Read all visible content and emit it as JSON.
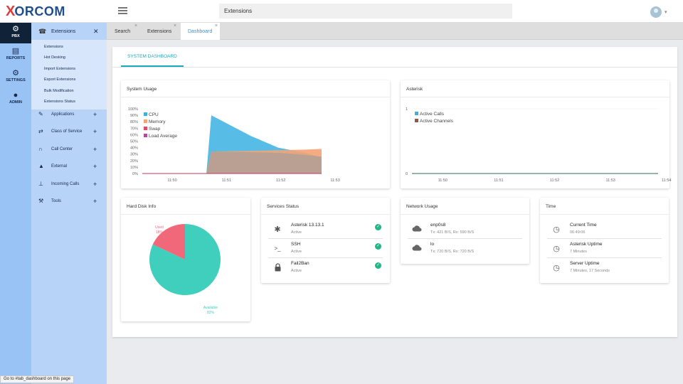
{
  "app": {
    "logo_brand": "ORCOM",
    "logo_x": "X",
    "search_value": "Extensions",
    "status_bar": "Go to #tab_dashboard on this page"
  },
  "rail": [
    {
      "label": "PBX",
      "icon": "⚙",
      "active": true
    },
    {
      "label": "REPORTS",
      "icon": "▤",
      "active": false
    },
    {
      "label": "SETTINGS",
      "icon": "⚙",
      "active": false
    },
    {
      "label": "ADMIN",
      "icon": "●",
      "active": false
    }
  ],
  "submenu": {
    "header": "Extensions",
    "links": [
      "Extensions",
      "Hot Desking",
      "Import Extensions",
      "Export Extensions",
      "Bulk Modification",
      "Extensions Status"
    ],
    "groups": [
      "Applications",
      "Class of Service",
      "Call Center",
      "External",
      "Incoming Calls",
      "Tools"
    ]
  },
  "tabs": [
    {
      "label": "Search"
    },
    {
      "label": "Extensions"
    },
    {
      "label": "Dashboard"
    }
  ],
  "dashboard": {
    "tab_label": "SYSTEM DASHBOARD",
    "system_usage": {
      "title": "System Usage"
    },
    "asterisk": {
      "title": "Asterisk"
    },
    "hard_disk": {
      "title": "Hard Disk Info"
    },
    "services": {
      "title": "Services Status",
      "items": [
        {
          "name": "Asterisk 13.13.1",
          "state": "Active",
          "icon": "asterisk-icon"
        },
        {
          "name": "SSH",
          "state": "Active",
          "icon": "terminal-icon"
        },
        {
          "name": "Fail2Ban",
          "state": "Active",
          "icon": "lock-icon"
        }
      ]
    },
    "network": {
      "title": "Network Usage",
      "items": [
        {
          "name": "enp0s8",
          "detail": "Tx: 421 B/S, Rx: 590 B/S"
        },
        {
          "name": "lo",
          "detail": "Tx: 720 B/S, Rx: 720 B/S"
        }
      ]
    },
    "time": {
      "title": "Time",
      "items": [
        {
          "name": "Current Time",
          "detail": "06:49:06"
        },
        {
          "name": "Asterisk Uptime",
          "detail": "7 Minutes"
        },
        {
          "name": "Server Uptime",
          "detail": "7 Minutes, 17 Seconds"
        }
      ]
    }
  },
  "chart_data": [
    {
      "type": "area",
      "title": "System Usage",
      "x": [
        "11:50",
        "11:51",
        "11:52",
        "11:53"
      ],
      "yticks": [
        "100%",
        "90%",
        "80%",
        "70%",
        "60%",
        "50%",
        "40%",
        "30%",
        "20%",
        "10%",
        "0%"
      ],
      "ylim": [
        0,
        100
      ],
      "legend": [
        "CPU",
        "Memory",
        "Swap",
        "Load Average"
      ],
      "colors": {
        "CPU": "#3ab0e2",
        "Memory": "#f5a374",
        "Swap": "#e8485f",
        "Load Average": "#b14c9b"
      },
      "series": [
        {
          "name": "CPU",
          "points": [
            [
              0,
              0
            ],
            [
              1.18,
              0
            ],
            [
              1.27,
              90
            ],
            [
              2.0,
              58
            ],
            [
              2.5,
              40
            ],
            [
              3.0,
              32
            ],
            [
              3.3,
              25
            ]
          ]
        },
        {
          "name": "Memory",
          "points": [
            [
              0,
              0
            ],
            [
              1.18,
              0
            ],
            [
              1.27,
              34
            ],
            [
              2.0,
              35
            ],
            [
              2.5,
              36
            ],
            [
              3.0,
              37
            ],
            [
              3.3,
              38
            ]
          ]
        },
        {
          "name": "Swap",
          "points": [
            [
              0,
              0
            ],
            [
              3.3,
              0
            ]
          ]
        },
        {
          "name": "Load Average",
          "points": [
            [
              0,
              0
            ],
            [
              1.18,
              0
            ],
            [
              1.27,
              34
            ],
            [
              2.0,
              33
            ],
            [
              2.5,
              32
            ],
            [
              3.0,
              29
            ],
            [
              3.3,
              26
            ]
          ]
        }
      ]
    },
    {
      "type": "line",
      "title": "Asterisk",
      "x": [
        "11:50",
        "11:51",
        "11:52",
        "11:53",
        "11:54"
      ],
      "yticks": [
        "1",
        "0"
      ],
      "ylim": [
        0,
        1
      ],
      "legend": [
        "Active Calls",
        "Active Channels"
      ],
      "colors": {
        "Active Calls": "#3ab0e2",
        "Active Channels": "#8a5a4e"
      },
      "series": [
        {
          "name": "Active Calls",
          "points": [
            [
              0,
              0
            ],
            [
              4.4,
              0
            ]
          ]
        },
        {
          "name": "Active Channels",
          "points": [
            [
              0,
              0
            ],
            [
              4.4,
              0
            ]
          ]
        }
      ]
    },
    {
      "type": "pie",
      "title": "Hard Disk Info",
      "slices": [
        {
          "label": "Used",
          "percent": "18%",
          "value": 18,
          "color": "#f0687a"
        },
        {
          "label": "Available",
          "percent": "82%",
          "value": 82,
          "color": "#3fcfbc"
        }
      ]
    }
  ]
}
